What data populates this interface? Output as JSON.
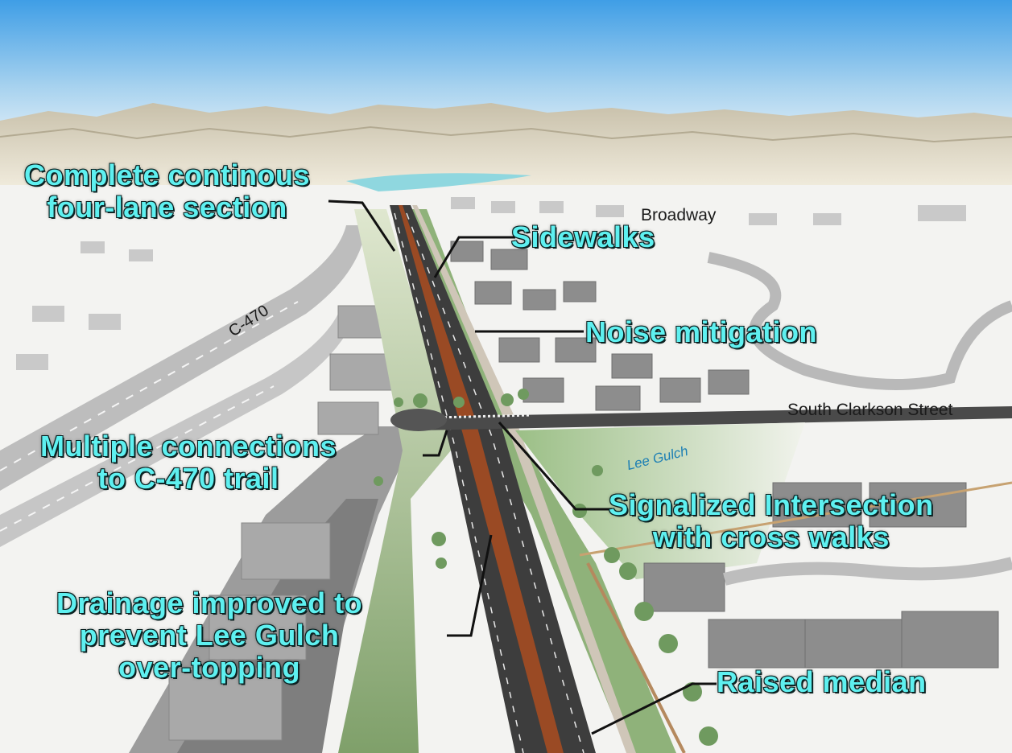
{
  "callouts": {
    "complete_section": [
      "Complete continous",
      "four-lane section"
    ],
    "sidewalks": "Sidewalks",
    "noise": "Noise mitigation",
    "connections": [
      "Multiple connections",
      "to C-470 trail"
    ],
    "signalized": [
      "Signalized Intersection",
      "with cross walks"
    ],
    "drainage": [
      "Drainage improved to",
      "prevent Lee Gulch",
      "over-topping"
    ],
    "median": "Raised median"
  },
  "labels": {
    "broadway": "Broadway",
    "c470": "C-470",
    "clarkson": "South Clarkson Street",
    "lee_gulch": "Lee Gulch"
  },
  "colors": {
    "callout_text": "#5ef0f0",
    "sky_top": "#4aa3e6",
    "median": "#9a4a24",
    "grass": "#8fae7a",
    "road": "#3c3c3c"
  }
}
